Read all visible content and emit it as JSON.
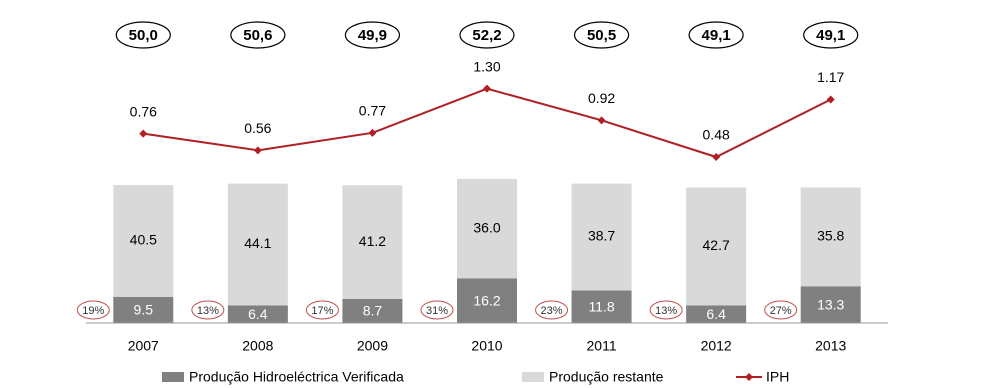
{
  "chart_data": {
    "type": "bar",
    "categories": [
      "2007",
      "2008",
      "2009",
      "2010",
      "2011",
      "2012",
      "2013"
    ],
    "series": [
      {
        "name": "Produção Hidroeléctrica Verificada",
        "color": "#808080",
        "values": [
          9.5,
          6.4,
          8.7,
          16.2,
          11.8,
          6.4,
          13.3
        ]
      },
      {
        "name": "Produção restante",
        "color": "#d9d9d9",
        "values": [
          40.5,
          44.1,
          41.2,
          36.0,
          38.7,
          42.7,
          35.8
        ],
        "value_labels": [
          "40.5",
          "44.1",
          "41.2",
          "36.0",
          "38.7",
          "42.7",
          "35.8"
        ]
      },
      {
        "name": "IPH",
        "color": "#b01f24",
        "type": "line",
        "axis": "y2",
        "values": [
          0.76,
          0.56,
          0.77,
          1.3,
          0.92,
          0.48,
          1.17
        ],
        "value_labels": [
          "0.76",
          "0.56",
          "0.77",
          "1.30",
          "0.92",
          "0.48",
          "1.17"
        ]
      }
    ],
    "totals": {
      "values": [
        50.0,
        50.6,
        49.9,
        52.2,
        50.5,
        49.1,
        49.1
      ],
      "value_labels": [
        "50,0",
        "50,6",
        "49,9",
        "52,2",
        "50,5",
        "49,1",
        "49,1"
      ]
    },
    "shares": {
      "values": [
        19,
        13,
        17,
        31,
        23,
        13,
        27
      ],
      "value_labels": [
        "19%",
        "13%",
        "17%",
        "31%",
        "23%",
        "13%",
        "27%"
      ]
    },
    "ylim": [
      0,
      100
    ],
    "y2lim": [
      0,
      1.8
    ]
  }
}
